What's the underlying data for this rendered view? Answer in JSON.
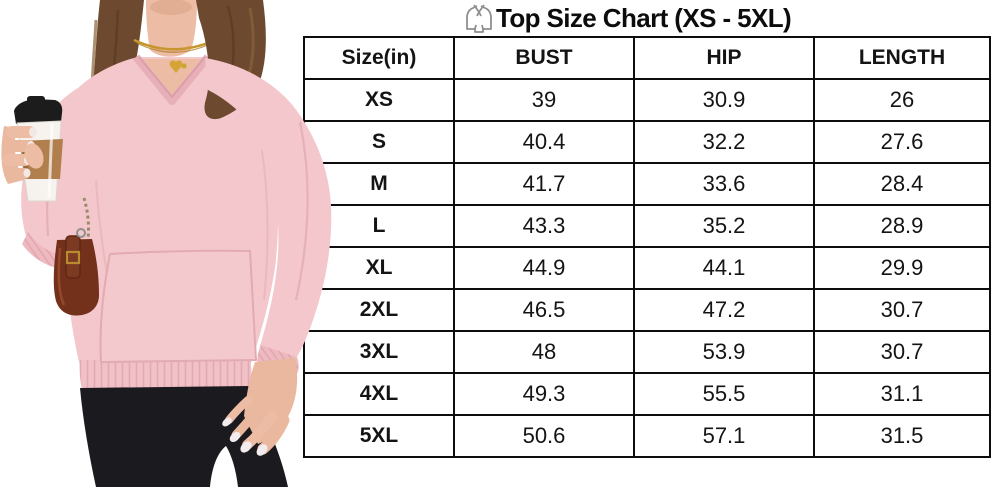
{
  "chart_data": {
    "type": "table",
    "title": "Top Size Chart (XS - 5XL)",
    "title_icon": "top-garment-icon",
    "unit": "in",
    "columns": [
      "Size(in)",
      "BUST",
      "HIP",
      "LENGTH"
    ],
    "rows": [
      [
        "XS",
        "39",
        "30.9",
        "26"
      ],
      [
        "S",
        "40.4",
        "32.2",
        "27.6"
      ],
      [
        "M",
        "41.7",
        "33.6",
        "28.4"
      ],
      [
        "L",
        "43.3",
        "35.2",
        "28.9"
      ],
      [
        "XL",
        "44.9",
        "44.1",
        "29.9"
      ],
      [
        "2XL",
        "46.5",
        "47.2",
        "30.7"
      ],
      [
        "3XL",
        "48",
        "53.9",
        "30.7"
      ],
      [
        "4XL",
        "49.3",
        "55.5",
        "31.1"
      ],
      [
        "5XL",
        "50.6",
        "57.1",
        "31.5"
      ]
    ],
    "grid": "on",
    "border_color": "#0d0d0d",
    "text_color": "#141414",
    "icon_color": "#8f8f8f"
  },
  "photo": {
    "subject": "model wearing light pink v-neck long-sleeve sweatshirt with kangaroo pocket, holding coffee cup, brown shoulder bag, black leggings, gold necklace",
    "colors": {
      "sweatshirt": "#f3c7cb",
      "sweatshirt_shade": "#e5aeb6",
      "skin": "#ecbda4",
      "hair": "#6d4a2f",
      "bag": "#73301b",
      "cup_lid": "#1c1c1c",
      "cup_body": "#f6f3ef",
      "cup_sleeve": "#b17f4e",
      "leggings": "#1b1a1f",
      "necklace": "#c6952c"
    }
  }
}
